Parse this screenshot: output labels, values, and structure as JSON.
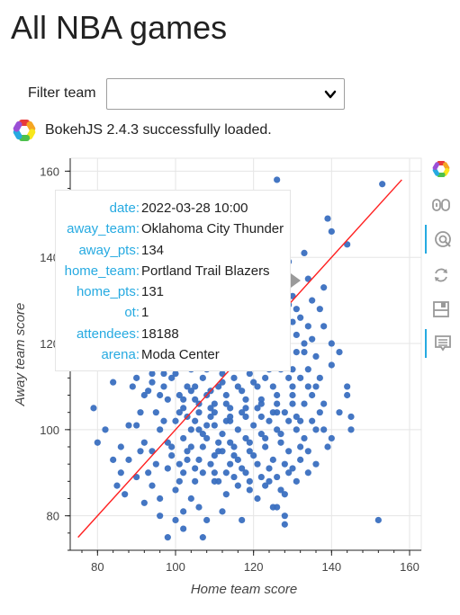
{
  "page": {
    "title": "All NBA games"
  },
  "filter": {
    "label": "Filter team",
    "selected": ""
  },
  "status": {
    "message": "BokehJS 2.4.3 successfully loaded."
  },
  "toolbar": {
    "tools": [
      {
        "name": "bokeh-logo-icon"
      },
      {
        "name": "pan-icon"
      },
      {
        "name": "wheel-zoom-icon",
        "active": true
      },
      {
        "name": "reset-icon"
      },
      {
        "name": "save-icon"
      },
      {
        "name": "hover-icon",
        "active": true
      }
    ]
  },
  "tooltip": {
    "rows": [
      {
        "key": "date:",
        "value": "2022-03-28 10:00"
      },
      {
        "key": "away_team:",
        "value": "Oklahoma City Thunder"
      },
      {
        "key": "away_pts:",
        "value": "134"
      },
      {
        "key": "home_team:",
        "value": "Portland Trail Blazers"
      },
      {
        "key": "home_pts:",
        "value": "131"
      },
      {
        "key": "ot:",
        "value": "1"
      },
      {
        "key": "attendees:",
        "value": "18188"
      },
      {
        "key": "arena:",
        "value": "Moda Center"
      }
    ]
  },
  "colors": {
    "points": "#3a6fc0",
    "diagonal": "#ff2020",
    "link": "#26aae1"
  },
  "chart_data": {
    "type": "scatter",
    "xlabel": "Home team score",
    "ylabel": "Away team score",
    "xlim": [
      73,
      163
    ],
    "ylim": [
      72,
      163
    ],
    "xticks": [
      80,
      100,
      120,
      140,
      160
    ],
    "yticks": [
      80,
      100,
      120,
      140,
      160
    ],
    "grid": true,
    "reference_line": {
      "x": [
        75,
        158
      ],
      "y": [
        75,
        158
      ]
    },
    "points": [
      [
        126,
        158
      ],
      [
        153,
        157
      ],
      [
        139,
        149
      ],
      [
        140,
        146
      ],
      [
        144,
        143
      ],
      [
        127,
        142
      ],
      [
        129,
        139
      ],
      [
        133,
        141
      ],
      [
        134,
        135
      ],
      [
        138,
        133
      ],
      [
        135,
        130
      ],
      [
        137,
        128
      ],
      [
        132,
        126
      ],
      [
        138,
        124
      ],
      [
        135,
        121
      ],
      [
        140,
        120
      ],
      [
        142,
        118
      ],
      [
        140,
        115
      ],
      [
        137,
        112
      ],
      [
        134,
        110
      ],
      [
        138,
        106
      ],
      [
        144,
        108
      ],
      [
        145,
        103
      ],
      [
        136,
        100
      ],
      [
        140,
        98
      ],
      [
        134,
        95
      ],
      [
        136,
        92
      ],
      [
        129,
        90
      ],
      [
        128,
        85
      ],
      [
        126,
        82
      ],
      [
        128,
        80
      ],
      [
        128,
        78
      ],
      [
        152,
        79
      ],
      [
        144,
        110
      ],
      [
        145,
        100
      ],
      [
        130,
        114
      ],
      [
        133,
        118
      ],
      [
        131,
        122
      ],
      [
        135,
        108
      ],
      [
        142,
        104
      ],
      [
        79,
        105
      ],
      [
        82,
        100
      ],
      [
        80,
        97
      ],
      [
        84,
        111
      ],
      [
        84,
        93
      ],
      [
        86,
        90
      ],
      [
        85,
        87
      ],
      [
        87,
        85
      ],
      [
        92,
        83
      ],
      [
        96,
        80
      ],
      [
        100,
        79
      ],
      [
        102,
        77
      ],
      [
        98,
        75
      ],
      [
        107,
        75
      ],
      [
        102,
        81
      ],
      [
        104,
        84
      ],
      [
        110,
        88
      ],
      [
        113,
        85
      ],
      [
        116,
        87
      ],
      [
        119,
        86
      ],
      [
        121,
        84
      ],
      [
        124,
        88
      ],
      [
        125,
        82
      ],
      [
        106,
        82
      ],
      [
        108,
        79
      ],
      [
        94,
        87
      ],
      [
        90,
        89
      ],
      [
        117,
        79
      ],
      [
        112,
        81
      ],
      [
        96,
        84
      ],
      [
        100,
        86
      ],
      [
        105,
        88
      ],
      [
        93,
        90
      ],
      [
        88,
        93
      ],
      [
        94,
        95
      ],
      [
        96,
        100
      ],
      [
        92,
        97
      ],
      [
        90,
        101
      ],
      [
        95,
        104
      ],
      [
        92,
        108
      ],
      [
        89,
        110
      ],
      [
        94,
        113
      ],
      [
        97,
        116
      ],
      [
        95,
        118
      ],
      [
        100,
        120
      ],
      [
        104,
        122
      ],
      [
        108,
        124
      ],
      [
        112,
        123
      ],
      [
        116,
        125
      ],
      [
        118,
        127
      ],
      [
        121,
        128
      ],
      [
        124,
        124
      ],
      [
        127,
        121
      ],
      [
        123,
        118
      ],
      [
        119,
        117
      ],
      [
        114,
        118
      ],
      [
        110,
        116
      ],
      [
        106,
        118
      ],
      [
        102,
        115
      ],
      [
        99,
        112
      ],
      [
        103,
        110
      ],
      [
        107,
        112
      ],
      [
        111,
        110
      ],
      [
        115,
        112
      ],
      [
        119,
        113
      ],
      [
        123,
        112
      ],
      [
        127,
        114
      ],
      [
        130,
        110
      ],
      [
        126,
        108
      ],
      [
        122,
        106
      ],
      [
        118,
        107
      ],
      [
        114,
        105
      ],
      [
        110,
        106
      ],
      [
        106,
        104
      ],
      [
        102,
        105
      ],
      [
        98,
        107
      ],
      [
        100,
        102
      ],
      [
        104,
        100
      ],
      [
        108,
        101
      ],
      [
        112,
        99
      ],
      [
        116,
        100
      ],
      [
        120,
        101
      ],
      [
        124,
        102
      ],
      [
        128,
        104
      ],
      [
        131,
        100
      ],
      [
        127,
        97
      ],
      [
        123,
        96
      ],
      [
        119,
        95
      ],
      [
        115,
        94
      ],
      [
        111,
        95
      ],
      [
        107,
        96
      ],
      [
        103,
        95
      ],
      [
        99,
        96
      ],
      [
        101,
        92
      ],
      [
        105,
        91
      ],
      [
        109,
        92
      ],
      [
        113,
        90
      ],
      [
        117,
        91
      ],
      [
        121,
        92
      ],
      [
        125,
        93
      ],
      [
        129,
        95
      ],
      [
        132,
        96
      ],
      [
        130,
        91
      ],
      [
        126,
        89
      ],
      [
        122,
        89
      ],
      [
        118,
        90
      ],
      [
        114,
        92
      ],
      [
        110,
        90
      ],
      [
        106,
        93
      ],
      [
        102,
        90
      ],
      [
        98,
        91
      ],
      [
        101,
        88
      ],
      [
        110,
        94
      ],
      [
        114,
        97
      ],
      [
        118,
        98
      ],
      [
        122,
        99
      ],
      [
        126,
        100
      ],
      [
        113,
        102
      ],
      [
        109,
        103
      ],
      [
        105,
        107
      ],
      [
        101,
        108
      ],
      [
        97,
        110
      ],
      [
        100,
        113
      ],
      [
        104,
        114
      ],
      [
        108,
        114
      ],
      [
        112,
        113
      ],
      [
        116,
        115
      ],
      [
        120,
        116
      ],
      [
        124,
        116
      ],
      [
        128,
        117
      ],
      [
        131,
        118
      ],
      [
        129,
        112
      ],
      [
        125,
        110
      ],
      [
        121,
        110
      ],
      [
        117,
        109
      ],
      [
        113,
        108
      ],
      [
        109,
        109
      ],
      [
        105,
        110
      ],
      [
        111,
        117
      ],
      [
        115,
        120
      ],
      [
        119,
        121
      ],
      [
        123,
        121
      ],
      [
        127,
        123
      ],
      [
        130,
        125
      ],
      [
        129,
        129
      ],
      [
        126,
        131
      ],
      [
        122,
        132
      ],
      [
        118,
        131
      ],
      [
        114,
        128
      ],
      [
        110,
        127
      ],
      [
        107,
        122
      ],
      [
        103,
        119
      ],
      [
        99,
        118
      ],
      [
        96,
        121
      ],
      [
        93,
        109
      ],
      [
        91,
        104
      ],
      [
        97,
        102
      ],
      [
        103,
        103
      ],
      [
        107,
        99
      ],
      [
        111,
        97
      ],
      [
        115,
        96
      ],
      [
        119,
        97
      ],
      [
        123,
        98
      ],
      [
        127,
        99
      ],
      [
        131,
        103
      ],
      [
        133,
        106
      ],
      [
        130,
        106
      ],
      [
        126,
        104
      ],
      [
        122,
        103
      ],
      [
        118,
        103
      ],
      [
        114,
        102
      ],
      [
        110,
        101
      ],
      [
        106,
        100
      ],
      [
        102,
        98
      ],
      [
        98,
        97
      ],
      [
        104,
        96
      ],
      [
        108,
        98
      ],
      [
        112,
        95
      ],
      [
        116,
        93
      ],
      [
        120,
        94
      ],
      [
        124,
        91
      ],
      [
        128,
        92
      ],
      [
        132,
        93
      ],
      [
        88,
        101
      ],
      [
        86,
        96
      ],
      [
        91,
        95
      ],
      [
        95,
        92
      ],
      [
        99,
        94
      ],
      [
        103,
        93
      ],
      [
        107,
        90
      ],
      [
        111,
        88
      ],
      [
        115,
        89
      ],
      [
        119,
        88
      ],
      [
        123,
        87
      ],
      [
        127,
        86
      ],
      [
        131,
        88
      ],
      [
        133,
        98
      ],
      [
        135,
        102
      ],
      [
        134,
        114
      ],
      [
        136,
        117
      ],
      [
        133,
        120
      ],
      [
        130,
        131
      ],
      [
        127,
        134
      ],
      [
        124,
        127
      ],
      [
        120,
        124
      ],
      [
        116,
        122
      ],
      [
        112,
        120
      ],
      [
        108,
        119
      ],
      [
        104,
        116
      ],
      [
        100,
        116
      ],
      [
        97,
        113
      ],
      [
        94,
        111
      ],
      [
        92,
        115
      ],
      [
        90,
        112
      ],
      [
        96,
        108
      ],
      [
        102,
        107
      ],
      [
        106,
        106
      ],
      [
        110,
        104
      ],
      [
        114,
        103
      ],
      [
        118,
        105
      ],
      [
        122,
        107
      ],
      [
        126,
        106
      ],
      [
        130,
        108
      ],
      [
        132,
        112
      ],
      [
        128,
        115
      ],
      [
        124,
        114
      ],
      [
        120,
        111
      ],
      [
        116,
        110
      ],
      [
        112,
        111
      ],
      [
        108,
        108
      ],
      [
        104,
        109
      ],
      [
        101,
        104
      ],
      [
        105,
        102
      ],
      [
        109,
        105
      ],
      [
        113,
        106
      ],
      [
        117,
        104
      ],
      [
        121,
        105
      ],
      [
        125,
        104
      ],
      [
        129,
        102
      ],
      [
        132,
        102
      ],
      [
        121,
        126
      ],
      [
        117,
        129
      ],
      [
        113,
        125
      ],
      [
        109,
        121
      ],
      [
        105,
        120
      ],
      [
        101,
        121
      ],
      [
        98,
        123
      ],
      [
        125,
        130
      ],
      [
        122,
        135
      ],
      [
        119,
        133
      ],
      [
        128,
        127
      ],
      [
        131,
        128
      ],
      [
        134,
        124
      ],
      [
        136,
        110
      ],
      [
        138,
        100
      ],
      [
        139,
        96
      ],
      [
        134,
        90
      ],
      [
        137,
        104
      ]
    ]
  }
}
